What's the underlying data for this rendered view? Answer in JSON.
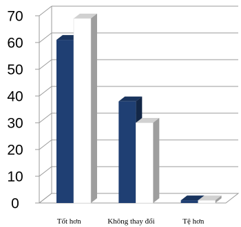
{
  "chart_data": {
    "type": "bar",
    "style": "3d-clustered-column",
    "categories": [
      "Tốt hơn",
      "Không thay đổi",
      "Tệ hơn"
    ],
    "series": [
      {
        "values": [
          61,
          38,
          1
        ],
        "color": "#1f3f73"
      },
      {
        "values": [
          69,
          30,
          1
        ],
        "color": "#ffffff"
      }
    ],
    "ylim": [
      0,
      70
    ],
    "yticks": [
      0,
      10,
      20,
      30,
      40,
      50,
      60,
      70
    ],
    "grid": true,
    "title": "",
    "xlabel": "",
    "ylabel": ""
  }
}
